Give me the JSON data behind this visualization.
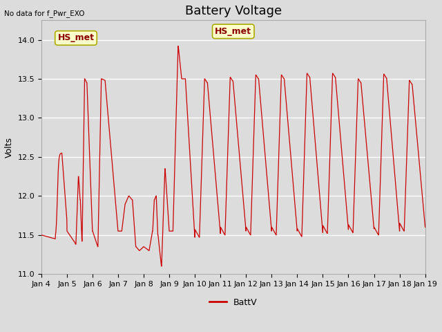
{
  "title": "Battery Voltage",
  "ylabel": "Volts",
  "top_left_text": "No data for f_Pwr_EXO",
  "legend_label": "BattV",
  "legend_color": "#cc0000",
  "line_color": "#cc0000",
  "background_color": "#dcdcdc",
  "plot_bg_color": "#dcdcdc",
  "ylim": [
    11.0,
    14.2
  ],
  "yticks": [
    11.0,
    11.5,
    12.0,
    12.5,
    13.0,
    13.5,
    14.0
  ],
  "xtick_labels": [
    "Jan 4",
    "Jan 5",
    "Jan 6",
    "Jan 7",
    "Jan 8",
    "Jan 9",
    "Jan 10",
    "Jan 11",
    "Jan 12",
    "Jan 13",
    "Jan 14",
    "Jan 15",
    "Jan 16",
    "Jan 17",
    "Jan 18",
    "Jan 19"
  ],
  "annotation_text": "HS_met",
  "annotation_color": "#8b0000",
  "annotation_bg": "#ffffcc",
  "title_fontsize": 13,
  "axis_fontsize": 9,
  "tick_fontsize": 8
}
